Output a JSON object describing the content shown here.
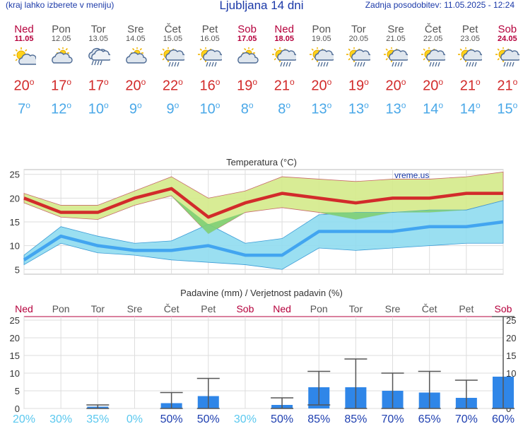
{
  "header": {
    "hint": "(kraj lahko izberete v meniju)",
    "title": "Ljubljana 14 dni",
    "updated": "Zadnja posodobitev: 11.05.2025 - 12:24"
  },
  "days": [
    {
      "name": "Ned",
      "date": "11.05",
      "weekend": true,
      "icon": "sun-cloud-icon",
      "tmax": "20",
      "tmin": "7"
    },
    {
      "name": "Pon",
      "date": "12.05",
      "weekend": false,
      "icon": "cloud-sun-icon",
      "tmax": "17",
      "tmin": "12"
    },
    {
      "name": "Tor",
      "date": "13.05",
      "weekend": false,
      "icon": "cloud-rain-icon",
      "tmax": "17",
      "tmin": "10"
    },
    {
      "name": "Sre",
      "date": "14.05",
      "weekend": false,
      "icon": "cloud-sun-icon",
      "tmax": "20",
      "tmin": "9"
    },
    {
      "name": "Čet",
      "date": "15.05",
      "weekend": false,
      "icon": "sun-rain-icon",
      "tmax": "22",
      "tmin": "9"
    },
    {
      "name": "Pet",
      "date": "16.05",
      "weekend": false,
      "icon": "sun-rain-icon",
      "tmax": "16",
      "tmin": "10"
    },
    {
      "name": "Sob",
      "date": "17.05",
      "weekend": true,
      "icon": "cloud-sun-icon",
      "tmax": "19",
      "tmin": "8"
    },
    {
      "name": "Ned",
      "date": "18.05",
      "weekend": true,
      "icon": "sun-rain-icon",
      "tmax": "21",
      "tmin": "8"
    },
    {
      "name": "Pon",
      "date": "19.05",
      "weekend": false,
      "icon": "sun-rain-icon",
      "tmax": "20",
      "tmin": "13"
    },
    {
      "name": "Tor",
      "date": "20.05",
      "weekend": false,
      "icon": "sun-rain-icon",
      "tmax": "19",
      "tmin": "13"
    },
    {
      "name": "Sre",
      "date": "21.05",
      "weekend": false,
      "icon": "sun-rain-icon",
      "tmax": "20",
      "tmin": "13"
    },
    {
      "name": "Čet",
      "date": "22.05",
      "weekend": false,
      "icon": "sun-rain-icon",
      "tmax": "20",
      "tmin": "14"
    },
    {
      "name": "Pet",
      "date": "23.05",
      "weekend": false,
      "icon": "sun-rain-icon",
      "tmax": "21",
      "tmin": "14"
    },
    {
      "name": "Sob",
      "date": "24.05",
      "weekend": true,
      "icon": "sun-rain-icon",
      "tmax": "21",
      "tmin": "15"
    }
  ],
  "colors": {
    "max_line": "#d22b2b",
    "max_band": "#d4ea8a",
    "min_line": "#42a5f0",
    "min_band": "#8fdcef",
    "overlap_band": "#7fcf74",
    "bar": "#2f86e8",
    "weekend": "#b5003c",
    "title": "#1b39a8"
  },
  "chart_data": [
    {
      "type": "line",
      "title": "Temperatura (°C)",
      "watermark": "vreme.us",
      "x": [
        "Ned",
        "Pon",
        "Tor",
        "Sre",
        "Čet",
        "Pet",
        "Sob",
        "Ned",
        "Pon",
        "Tor",
        "Sre",
        "Čet",
        "Pet",
        "Sob"
      ],
      "ylim": [
        4,
        26
      ],
      "yticks": [
        5,
        10,
        15,
        20,
        25
      ],
      "series": [
        {
          "values": [
            20,
            17,
            17,
            20,
            22,
            16,
            19,
            21,
            20,
            19,
            20,
            20,
            21,
            21
          ],
          "band_low": [
            21,
            18.5,
            18.5,
            21.5,
            24.5,
            20,
            21.5,
            24.5,
            24,
            23.5,
            24,
            24,
            24.5,
            25.5
          ],
          "band_high": [
            19,
            16,
            15.5,
            18.5,
            20.5,
            12.5,
            17,
            18,
            17,
            15.5,
            17,
            17,
            17.5,
            19.5
          ]
        },
        {
          "values": [
            7,
            12,
            10,
            9,
            9,
            10,
            8,
            8,
            13,
            13,
            13,
            14,
            14,
            15
          ],
          "band_low": [
            6,
            10.5,
            8.5,
            8,
            7,
            6.5,
            6,
            5,
            9.5,
            9,
            9.5,
            10,
            10.5,
            10.5
          ],
          "band_high": [
            8,
            14,
            12,
            10.5,
            11,
            14.5,
            10.5,
            11.5,
            16.5,
            17,
            17,
            17.5,
            17.5,
            19.5
          ]
        }
      ],
      "grid": true
    },
    {
      "type": "bar",
      "title": "Padavine (mm) / Verjetnost padavin (%)",
      "categories": [
        "Ned",
        "Pon",
        "Tor",
        "Sre",
        "Čet",
        "Pet",
        "Sob",
        "Ned",
        "Pon",
        "Tor",
        "Sre",
        "Čet",
        "Pet",
        "Sob"
      ],
      "values": [
        0,
        0,
        0.5,
        0,
        1.5,
        3.5,
        0,
        1,
        6,
        6,
        5,
        4.5,
        3,
        9
      ],
      "error_high": [
        0,
        0,
        1,
        0,
        4.5,
        8.5,
        0,
        3,
        10.5,
        14,
        10,
        10.5,
        8,
        26
      ],
      "error_low": [
        0,
        0,
        0,
        0,
        0,
        0,
        0,
        0,
        1,
        0,
        0,
        0,
        0,
        0
      ],
      "probability": [
        "20%",
        "30%",
        "35%",
        "0%",
        "50%",
        "50%",
        "30%",
        "50%",
        "85%",
        "85%",
        "70%",
        "65%",
        "70%",
        "60%"
      ],
      "ylim": [
        0,
        26
      ],
      "yticks": [
        0,
        5,
        10,
        15,
        20,
        25
      ],
      "grid": true
    }
  ]
}
